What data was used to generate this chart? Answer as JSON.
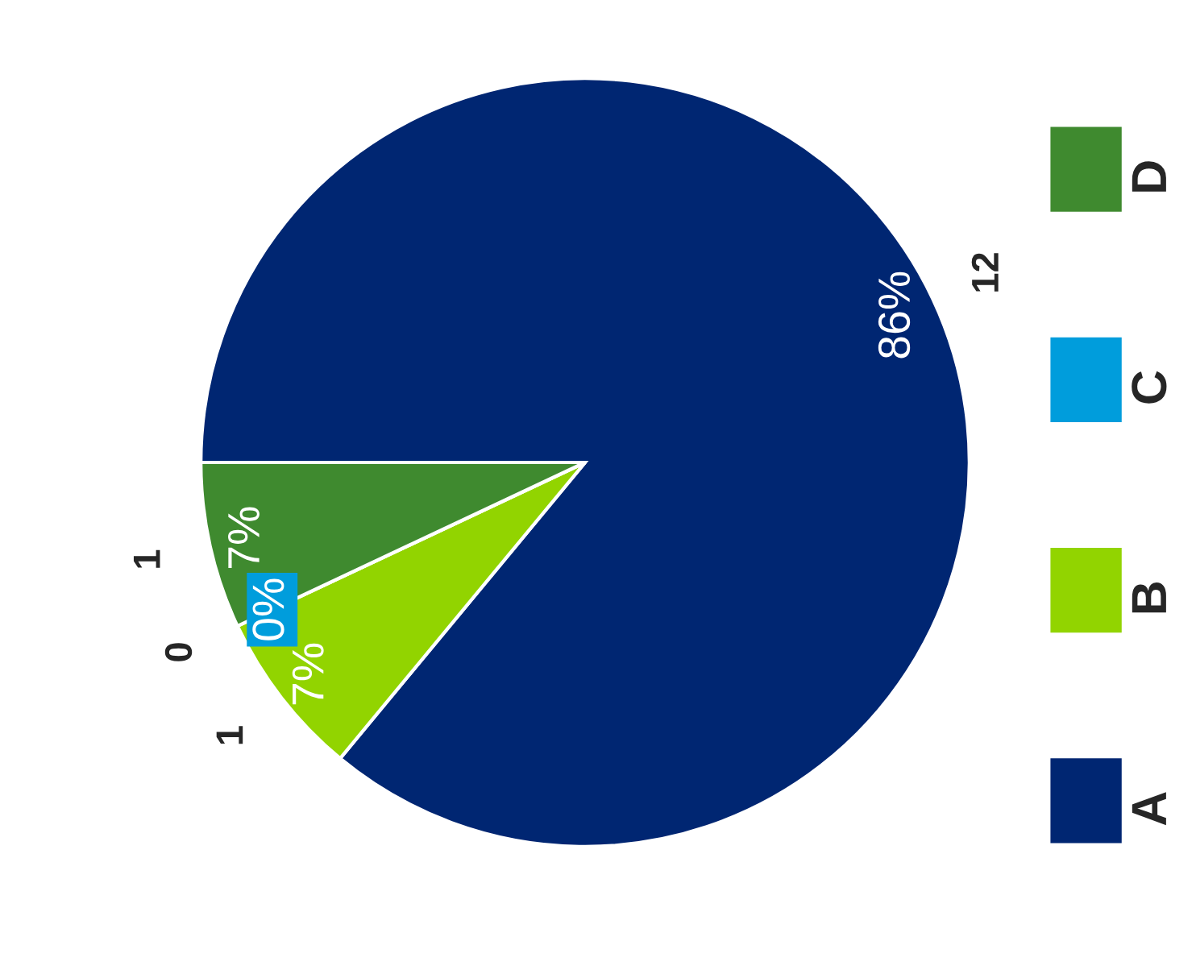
{
  "chart_data": {
    "type": "pie",
    "categories": [
      "A",
      "B",
      "C",
      "D"
    ],
    "values": [
      86,
      7,
      0,
      7
    ],
    "colors": [
      "#002672",
      "#92d400",
      "#009ddc",
      "#3f8a2f"
    ],
    "value_labels": [
      "86%",
      "7%",
      "0%",
      "7%"
    ],
    "annotations": [
      {
        "text": "12",
        "x": "A"
      },
      {
        "text": "1",
        "x": "B"
      },
      {
        "text": "0",
        "x": "C"
      },
      {
        "text": "1",
        "x": "D"
      }
    ],
    "legend": "right"
  }
}
